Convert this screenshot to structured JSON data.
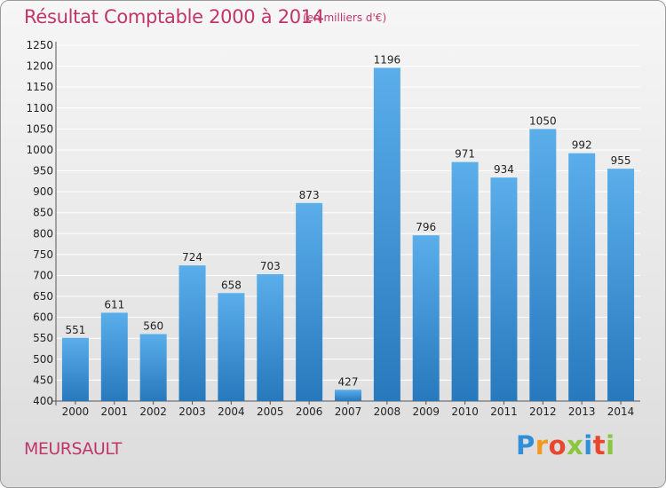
{
  "header": {
    "title": "Résultat Comptable 2000 à 2014",
    "subtitle": "(en milliers d'€)"
  },
  "footer": {
    "commune": "MEURSAULT",
    "logo": {
      "letters": [
        "P",
        "r",
        "o",
        "x",
        "i",
        "t",
        "i"
      ],
      "colors": [
        "#2f8fd8",
        "#f39a1e",
        "#e8462d",
        "#8cc63f",
        "#2f8fd8",
        "#e8462d",
        "#8cc63f"
      ]
    }
  },
  "colors": {
    "bar_light": "#5aaeea",
    "bar_dark": "#2878bd",
    "grid": "#ffffff",
    "title": "#c0366a"
  },
  "chart_data": {
    "type": "bar",
    "categories": [
      "2000",
      "2001",
      "2002",
      "2003",
      "2004",
      "2005",
      "2006",
      "2007",
      "2008",
      "2009",
      "2010",
      "2011",
      "2012",
      "2013",
      "2014"
    ],
    "values": [
      551,
      611,
      560,
      724,
      658,
      703,
      873,
      427,
      1196,
      796,
      971,
      934,
      1050,
      992,
      955
    ],
    "ylim": [
      400,
      1250
    ],
    "yticks": [
      400,
      450,
      500,
      550,
      600,
      650,
      700,
      750,
      800,
      850,
      900,
      950,
      1000,
      1050,
      1100,
      1150,
      1200,
      1250
    ],
    "grid": true
  }
}
